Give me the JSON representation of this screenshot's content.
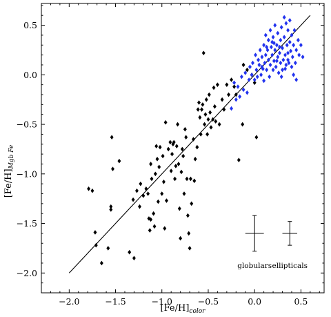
{
  "chart_data": {
    "type": "scatter",
    "xlabel": {
      "main": "[Fe/H]",
      "sub": "color"
    },
    "ylabel": {
      "main": "[Fe/H]",
      "sub": "Mgb Fe"
    },
    "xlim": [
      -2.3,
      0.75
    ],
    "ylim": [
      -2.2,
      0.72
    ],
    "x_ticks": [
      -2.0,
      -1.5,
      -1.0,
      -0.5,
      0.0,
      0.5
    ],
    "x_tick_labels": [
      "−2.0",
      "−1.5",
      "−1.0",
      "−0.5",
      "0.0",
      "0.5"
    ],
    "y_ticks": [
      -2.0,
      -1.5,
      -1.0,
      -0.5,
      0.0,
      0.5
    ],
    "y_tick_labels": [
      "−2.0",
      "−1.5",
      "−1.0",
      "−0.5",
      "0.0",
      "0.5"
    ],
    "grid": false,
    "fit_line": {
      "x": [
        -2.0,
        0.6
      ],
      "y": [
        -2.0,
        0.6
      ],
      "color": "#000000"
    },
    "series": [
      {
        "color": "#000000",
        "marker": "diamond",
        "points": [
          [
            -1.79,
            -1.15
          ],
          [
            -1.75,
            -1.17
          ],
          [
            -1.72,
            -1.59
          ],
          [
            -1.71,
            -1.72
          ],
          [
            -1.65,
            -1.9
          ],
          [
            -1.58,
            -1.75
          ],
          [
            -1.55,
            -1.33
          ],
          [
            -1.55,
            -1.36
          ],
          [
            -1.54,
            -0.63
          ],
          [
            -1.53,
            -0.95
          ],
          [
            -1.46,
            -0.87
          ],
          [
            -1.35,
            -1.79
          ],
          [
            -1.3,
            -1.85
          ],
          [
            -1.31,
            -1.26
          ],
          [
            -1.27,
            -1.17
          ],
          [
            -1.24,
            -1.33
          ],
          [
            -1.23,
            -1.1
          ],
          [
            -1.2,
            -1.22
          ],
          [
            -1.17,
            -1.15
          ],
          [
            -1.15,
            -1.2
          ],
          [
            -1.14,
            -1.45
          ],
          [
            -1.12,
            -1.46
          ],
          [
            -1.13,
            -1.57
          ],
          [
            -1.12,
            -0.9
          ],
          [
            -1.11,
            -1.05
          ],
          [
            -1.09,
            -1.4
          ],
          [
            -1.08,
            -1.53
          ],
          [
            -1.07,
            -1.0
          ],
          [
            -1.06,
            -0.72
          ],
          [
            -1.05,
            -0.85
          ],
          [
            -1.04,
            -1.28
          ],
          [
            -1.03,
            -0.93
          ],
          [
            -1.02,
            -0.73
          ],
          [
            -1.0,
            -1.2
          ],
          [
            -0.99,
            -0.82
          ],
          [
            -0.98,
            -1.08
          ],
          [
            -0.97,
            -1.55
          ],
          [
            -0.96,
            -0.48
          ],
          [
            -0.95,
            -1.27
          ],
          [
            -0.93,
            -0.75
          ],
          [
            -0.91,
            -0.68
          ],
          [
            -0.9,
            -0.97
          ],
          [
            -0.89,
            -0.8
          ],
          [
            -0.88,
            -0.7
          ],
          [
            -0.87,
            -0.68
          ],
          [
            -0.86,
            -1.05
          ],
          [
            -0.85,
            -0.92
          ],
          [
            -0.84,
            -0.72
          ],
          [
            -0.83,
            -0.5
          ],
          [
            -0.82,
            -0.9
          ],
          [
            -0.81,
            -1.35
          ],
          [
            -0.8,
            -1.65
          ],
          [
            -0.79,
            -0.98
          ],
          [
            -0.78,
            -0.75
          ],
          [
            -0.77,
            -0.82
          ],
          [
            -0.76,
            -1.2
          ],
          [
            -0.75,
            -0.55
          ],
          [
            -0.74,
            -0.63
          ],
          [
            -0.73,
            -1.05
          ],
          [
            -0.72,
            -1.42
          ],
          [
            -0.71,
            -1.6
          ],
          [
            -0.7,
            -1.75
          ],
          [
            -0.69,
            -1.05
          ],
          [
            -0.68,
            -1.3
          ],
          [
            -0.66,
            -0.65
          ],
          [
            -0.65,
            -1.07
          ],
          [
            -0.64,
            -0.85
          ],
          [
            -0.62,
            -0.73
          ],
          [
            -0.61,
            -0.35
          ],
          [
            -0.6,
            -0.28
          ],
          [
            -0.59,
            -0.43
          ],
          [
            -0.58,
            -0.6
          ],
          [
            -0.57,
            -0.35
          ],
          [
            -0.56,
            -0.3
          ],
          [
            -0.55,
            0.22
          ],
          [
            -0.54,
            -0.5
          ],
          [
            -0.53,
            -0.4
          ],
          [
            -0.52,
            -0.25
          ],
          [
            -0.51,
            -0.6
          ],
          [
            -0.5,
            -0.45
          ],
          [
            -0.49,
            -0.2
          ],
          [
            -0.48,
            -0.38
          ],
          [
            -0.47,
            -0.53
          ],
          [
            -0.45,
            -0.45
          ],
          [
            -0.44,
            -0.13
          ],
          [
            -0.43,
            -0.32
          ],
          [
            -0.42,
            -0.47
          ],
          [
            -0.4,
            -0.1
          ],
          [
            -0.38,
            -0.5
          ],
          [
            -0.35,
            -0.25
          ],
          [
            -0.33,
            -0.35
          ],
          [
            -0.3,
            -0.1
          ],
          [
            -0.28,
            -0.2
          ],
          [
            -0.25,
            -0.05
          ],
          [
            -0.22,
            -0.12
          ],
          [
            -0.2,
            -0.2
          ],
          [
            -0.17,
            -0.86
          ],
          [
            -0.13,
            -0.5
          ],
          [
            0.02,
            -0.63
          ],
          [
            -0.12,
            0.1
          ],
          [
            -0.08,
            0.05
          ],
          [
            -0.03,
            0.0
          ],
          [
            0.0,
            -0.08
          ]
        ]
      },
      {
        "color": "#2233ee",
        "marker": "diamond",
        "points": [
          [
            -0.25,
            -0.34
          ],
          [
            -0.22,
            -0.08
          ],
          [
            -0.2,
            -0.25
          ],
          [
            -0.18,
            -0.12
          ],
          [
            -0.16,
            -0.22
          ],
          [
            -0.14,
            -0.02
          ],
          [
            -0.12,
            -0.15
          ],
          [
            -0.1,
            0.02
          ],
          [
            -0.08,
            -0.18
          ],
          [
            -0.06,
            -0.05
          ],
          [
            -0.05,
            0.08
          ],
          [
            -0.03,
            0.0
          ],
          [
            -0.02,
            0.12
          ],
          [
            0.0,
            -0.05
          ],
          [
            0.01,
            0.2
          ],
          [
            0.02,
            0.05
          ],
          [
            0.03,
            -0.02
          ],
          [
            0.04,
            0.15
          ],
          [
            0.05,
            0.1
          ],
          [
            0.06,
            0.25
          ],
          [
            0.07,
            0.0
          ],
          [
            0.08,
            0.18
          ],
          [
            0.09,
            0.06
          ],
          [
            0.1,
            -0.06
          ],
          [
            0.1,
            0.3
          ],
          [
            0.11,
            0.12
          ],
          [
            0.12,
            0.4
          ],
          [
            0.12,
            0.2
          ],
          [
            0.13,
            0.05
          ],
          [
            0.14,
            0.25
          ],
          [
            0.15,
            0.15
          ],
          [
            0.15,
            0.35
          ],
          [
            0.16,
            -0.02
          ],
          [
            0.17,
            0.45
          ],
          [
            0.17,
            0.1
          ],
          [
            0.18,
            0.28
          ],
          [
            0.19,
            0.2
          ],
          [
            0.2,
            0.05
          ],
          [
            0.2,
            0.38
          ],
          [
            0.21,
            0.14
          ],
          [
            0.22,
            0.5
          ],
          [
            0.22,
            0.25
          ],
          [
            0.23,
            0.08
          ],
          [
            0.24,
            0.3
          ],
          [
            0.25,
            0.18
          ],
          [
            0.25,
            0.42
          ],
          [
            0.26,
            0.02
          ],
          [
            0.27,
            0.22
          ],
          [
            0.28,
            0.35
          ],
          [
            0.28,
            0.12
          ],
          [
            0.29,
            0.48
          ],
          [
            0.3,
            0.27
          ],
          [
            0.3,
            0.05
          ],
          [
            0.31,
            0.15
          ],
          [
            0.32,
            0.58
          ],
          [
            0.32,
            0.38
          ],
          [
            0.33,
            0.2
          ],
          [
            0.34,
            0.1
          ],
          [
            0.34,
            0.52
          ],
          [
            0.35,
            0.3
          ],
          [
            0.36,
            0.45
          ],
          [
            0.36,
            0.22
          ],
          [
            0.37,
            0.12
          ],
          [
            0.38,
            0.33
          ],
          [
            0.38,
            0.55
          ],
          [
            0.39,
            0.24
          ],
          [
            0.4,
            0.08
          ],
          [
            0.4,
            0.4
          ],
          [
            0.41,
            0.18
          ],
          [
            0.42,
            0.3
          ],
          [
            0.43,
            0.45
          ],
          [
            0.44,
            0.12
          ],
          [
            0.45,
            0.25
          ],
          [
            0.47,
            0.35
          ],
          [
            0.48,
            0.2
          ],
          [
            0.5,
            0.3
          ],
          [
            0.52,
            0.18
          ],
          [
            0.45,
            -0.05
          ],
          [
            0.27,
            0.28
          ],
          [
            0.19,
            0.33
          ],
          [
            0.24,
            0.14
          ],
          [
            0.13,
            0.28
          ],
          [
            0.08,
            0.08
          ],
          [
            0.33,
            0.06
          ],
          [
            0.29,
            -0.02
          ],
          [
            0.21,
            0.32
          ],
          [
            0.42,
            0.0
          ],
          [
            0.36,
            0.15
          ]
        ]
      }
    ],
    "error_bars": [
      {
        "label": "globulars",
        "x": 0.0,
        "y": -1.6,
        "xerr": 0.1,
        "yerr": 0.18
      },
      {
        "label": "ellipticals",
        "x": 0.38,
        "y": -1.6,
        "xerr": 0.08,
        "yerr": 0.12
      }
    ]
  }
}
